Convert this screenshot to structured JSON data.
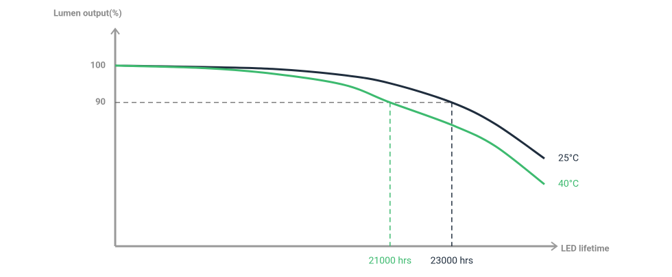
{
  "chart_data": {
    "type": "line",
    "ylabel": "Lumen output(%)",
    "xlabel": "LED lifetime",
    "x": [
      12100,
      15000,
      17200,
      19500,
      21000,
      23000,
      24400,
      26000
    ],
    "series": [
      {
        "name": "25°C",
        "color": "#1f2d3d",
        "values": [
          100,
          99.6,
          99.1,
          97.4,
          95.2,
          90,
          84.2,
          74.8
        ]
      },
      {
        "name": "40°C",
        "color": "#3dba6f",
        "values": [
          100,
          99.3,
          97.8,
          94.8,
          90,
          83.9,
          78.2,
          67.8
        ]
      }
    ],
    "xlim": [
      12100,
      26400
    ],
    "ylim": [
      51,
      110
    ],
    "yticks": [
      100,
      90
    ],
    "xticks": [
      {
        "value": 21000,
        "label": "21000 hrs"
      },
      {
        "value": 23000,
        "label": "23000 hrs"
      }
    ],
    "xtick_colors": [
      "#3dba6f",
      "#1f2d3d"
    ],
    "axis_color": "#9a9a9a"
  }
}
